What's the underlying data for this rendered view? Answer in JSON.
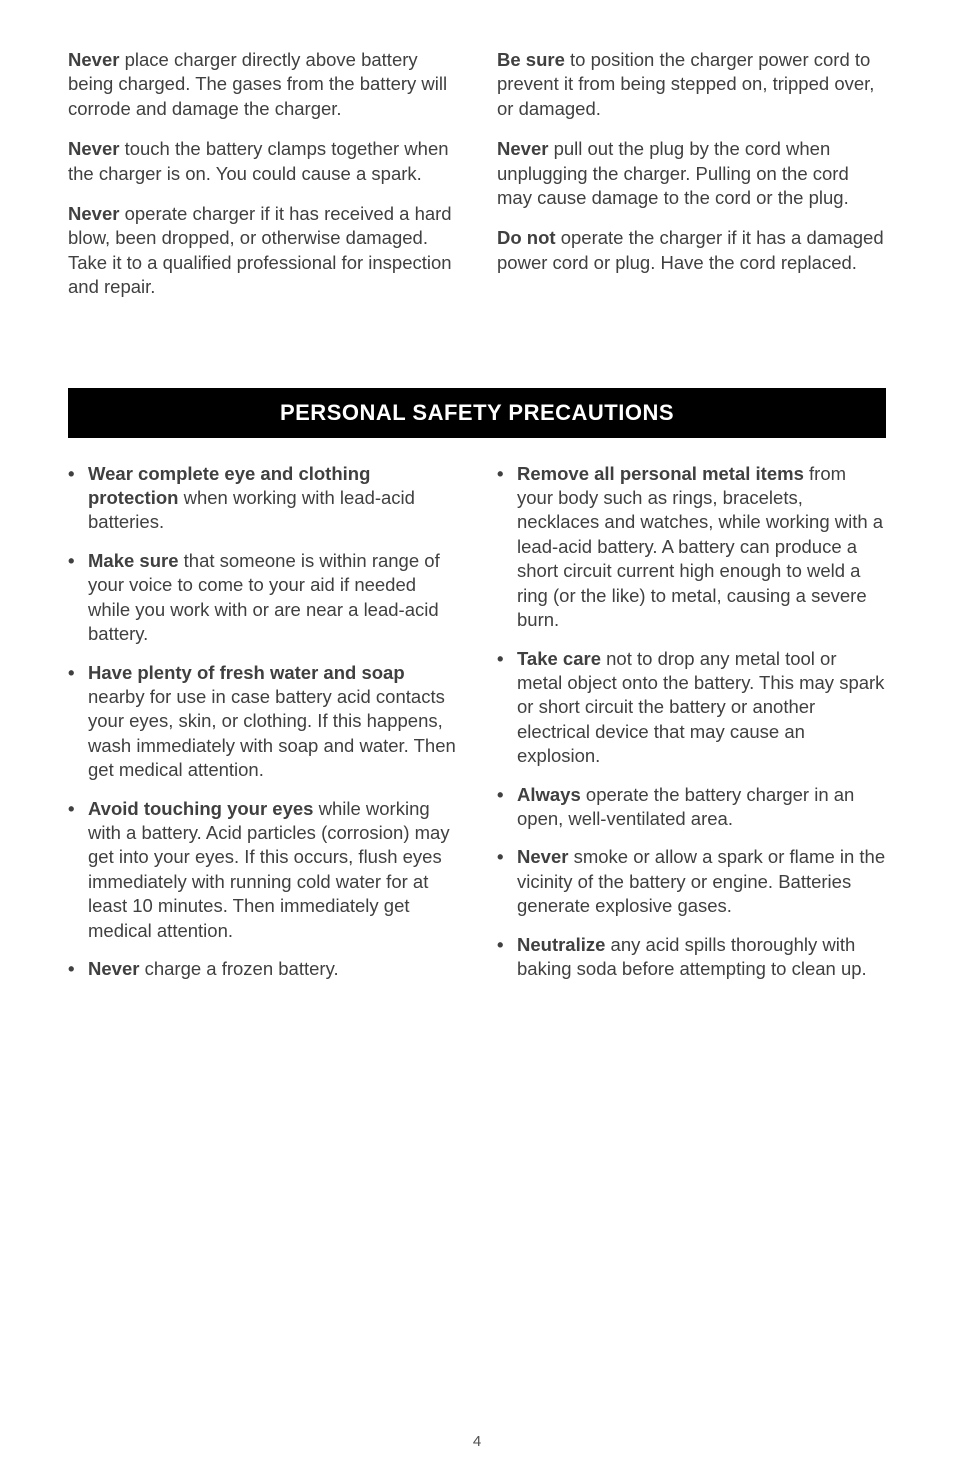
{
  "colors": {
    "text": "#404040",
    "background": "#ffffff",
    "header_bg": "#000000",
    "header_text": "#ffffff"
  },
  "typography": {
    "body_fontsize": 18.5,
    "header_fontsize": 22,
    "pagenum_fontsize": 15,
    "line_height": 1.32,
    "font_family": "Arial, Helvetica, sans-serif"
  },
  "top": {
    "left": [
      {
        "bold": "Never",
        "rest": " place charger directly above battery being charged. The gases from the battery will corrode and damage the charger."
      },
      {
        "bold": "Never",
        "rest": " touch the battery clamps together when the charger is on. You could cause a spark."
      },
      {
        "bold": "Never",
        "rest": " operate charger if it has received a hard blow, been dropped, or otherwise damaged. Take it to a qualified professional for inspection and repair."
      }
    ],
    "right": [
      {
        "bold": "Be sure",
        "rest": " to position the charger power cord to prevent it from being stepped on, tripped over, or damaged."
      },
      {
        "bold": "Never",
        "rest": " pull out the plug by the cord when unplugging the charger. Pulling on the cord may cause damage to the cord or the plug."
      },
      {
        "bold": "Do not",
        "rest": " operate the charger if it has a damaged power cord or plug. Have the cord replaced."
      }
    ]
  },
  "section_title": "PERSONAL SAFETY PRECAUTIONS",
  "bullets": {
    "left": [
      {
        "bold": "Wear complete eye and clothing protection",
        "rest": " when working with lead-acid batteries."
      },
      {
        "bold": "Make sure",
        "rest": " that someone is within range of your voice to come to your aid if needed while you work with or are near a lead-acid battery."
      },
      {
        "bold": "Have plenty of fresh water and soap",
        "rest": " nearby for use in case battery acid contacts your eyes, skin, or clothing. If this happens, wash immediately with soap and water. Then get medical attention."
      },
      {
        "bold": "Avoid touching your eyes",
        "rest": " while working with a battery. Acid particles (corrosion) may get into your eyes. If this occurs, flush eyes immediately with running cold water for at least 10 minutes. Then immediately get medical attention."
      },
      {
        "bold": "Never",
        "rest": " charge a frozen battery."
      }
    ],
    "right": [
      {
        "bold": "Remove all personal metal items",
        "rest": " from your body such as rings, bracelets, necklaces and watches, while working with a lead-acid battery. A battery can produce a short circuit current high enough to weld a ring (or the like) to metal, causing a severe burn."
      },
      {
        "bold": "Take care",
        "rest": " not to drop any metal tool or metal object onto the battery. This may spark or short circuit the battery or another electrical device that may cause an explosion."
      },
      {
        "bold": "Always",
        "rest": " operate the battery charger in an open, well-ventilated area."
      },
      {
        "bold": "Never",
        "rest": " smoke or allow a spark or flame in the vicinity of the battery or engine. Batteries generate explosive gases."
      },
      {
        "bold": "Neutralize",
        "rest": " any acid spills thoroughly with baking soda before attempting to clean up."
      }
    ]
  },
  "page_number": "4"
}
